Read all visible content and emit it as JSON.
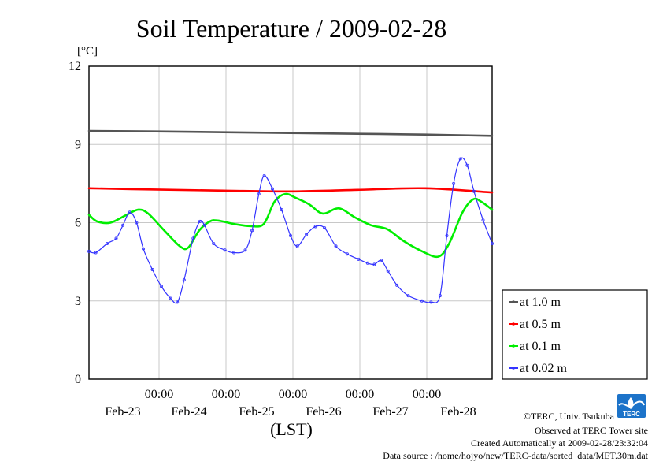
{
  "title": "Soil Temperature / 2009-02-28",
  "unit": "[°C]",
  "xlabel": "(LST)",
  "credits": [
    "©TERC, Univ. Tsukuba",
    "Observed at TERC Tower site",
    "Created Automatically at 2009-02-28/23:32:04",
    "Data source : /home/hojyo/new/TERC-data/sorted_data/MET.30m.dat"
  ],
  "logo_text": "TERC",
  "chart_data": {
    "type": "line",
    "title": "Soil Temperature / 2009-02-28",
    "xlabel": "(LST)",
    "ylabel": "[°C]",
    "ylim": [
      0,
      12
    ],
    "xlim_days": [
      0,
      6
    ],
    "xticks": [
      {
        "pos": 1,
        "time": "00:00",
        "date": "Feb-23"
      },
      {
        "pos": 2,
        "time": "00:00",
        "date": "Feb-24"
      },
      {
        "pos": 3,
        "time": "00:00",
        "date": "Feb-25"
      },
      {
        "pos": 4,
        "time": "00:00",
        "date": "Feb-26"
      },
      {
        "pos": 5,
        "time": "00:00",
        "date": "Feb-27"
      },
      {
        "pos": 6,
        "time": "00:00",
        "date": "Feb-28"
      }
    ],
    "yticks": [
      0,
      3,
      6,
      9,
      12
    ],
    "grid": true,
    "legend_position": "right",
    "series": [
      {
        "name": "at 1.0 m",
        "color": "#555555",
        "points": [
          [
            0.0,
            9.52
          ],
          [
            1.0,
            9.5
          ],
          [
            2.0,
            9.47
          ],
          [
            3.0,
            9.44
          ],
          [
            4.0,
            9.41
          ],
          [
            5.0,
            9.38
          ],
          [
            6.0,
            9.33
          ]
        ]
      },
      {
        "name": "at 0.5 m",
        "color": "#ff0000",
        "points": [
          [
            0.0,
            7.32
          ],
          [
            1.0,
            7.27
          ],
          [
            2.0,
            7.23
          ],
          [
            3.0,
            7.2
          ],
          [
            4.0,
            7.26
          ],
          [
            5.0,
            7.32
          ],
          [
            6.0,
            7.16
          ]
        ]
      },
      {
        "name": "at 0.1 m",
        "color": "#00ee00",
        "points": [
          [
            0.0,
            6.3
          ],
          [
            0.15,
            6.05
          ],
          [
            0.4,
            6.0
          ],
          [
            0.7,
            6.3
          ],
          [
            0.92,
            6.5
          ],
          [
            1.1,
            6.35
          ],
          [
            1.4,
            5.7
          ],
          [
            1.7,
            5.08
          ],
          [
            1.85,
            5.05
          ],
          [
            2.05,
            5.7
          ],
          [
            2.25,
            6.05
          ],
          [
            2.4,
            6.08
          ],
          [
            2.7,
            5.95
          ],
          [
            3.0,
            5.87
          ],
          [
            3.25,
            5.95
          ],
          [
            3.45,
            6.8
          ],
          [
            3.65,
            7.1
          ],
          [
            3.85,
            6.95
          ],
          [
            4.1,
            6.7
          ],
          [
            4.35,
            6.35
          ],
          [
            4.65,
            6.55
          ],
          [
            4.95,
            6.2
          ],
          [
            5.25,
            5.9
          ],
          [
            5.55,
            5.75
          ],
          [
            5.85,
            5.3
          ],
          [
            6.2,
            4.9
          ],
          [
            6.5,
            4.7
          ],
          [
            6.7,
            5.2
          ],
          [
            6.95,
            6.4
          ],
          [
            7.15,
            6.9
          ],
          [
            7.3,
            6.8
          ],
          [
            7.5,
            6.5
          ]
        ]
      },
      {
        "name": "at 0.02 m",
        "color": "#3333ff",
        "points": [
          [
            0.0,
            4.9
          ],
          [
            0.15,
            4.85
          ],
          [
            0.4,
            5.2
          ],
          [
            0.6,
            5.4
          ],
          [
            0.75,
            5.9
          ],
          [
            0.9,
            6.4
          ],
          [
            1.05,
            6.0
          ],
          [
            1.2,
            5.0
          ],
          [
            1.4,
            4.2
          ],
          [
            1.6,
            3.55
          ],
          [
            1.8,
            3.1
          ],
          [
            1.95,
            2.95
          ],
          [
            2.1,
            3.8
          ],
          [
            2.3,
            5.4
          ],
          [
            2.45,
            6.05
          ],
          [
            2.55,
            5.9
          ],
          [
            2.75,
            5.2
          ],
          [
            3.0,
            4.95
          ],
          [
            3.2,
            4.85
          ],
          [
            3.45,
            4.95
          ],
          [
            3.6,
            5.7
          ],
          [
            3.75,
            7.1
          ],
          [
            3.87,
            7.8
          ],
          [
            4.05,
            7.3
          ],
          [
            4.25,
            6.5
          ],
          [
            4.45,
            5.5
          ],
          [
            4.6,
            5.1
          ],
          [
            4.8,
            5.55
          ],
          [
            5.0,
            5.85
          ],
          [
            5.2,
            5.8
          ],
          [
            5.45,
            5.1
          ],
          [
            5.7,
            4.8
          ],
          [
            5.95,
            4.6
          ],
          [
            6.15,
            4.45
          ],
          [
            6.3,
            4.4
          ],
          [
            6.45,
            4.55
          ],
          [
            6.6,
            4.15
          ],
          [
            6.8,
            3.6
          ],
          [
            7.05,
            3.2
          ],
          [
            7.35,
            3.0
          ],
          [
            7.55,
            2.95
          ],
          [
            7.75,
            3.2
          ],
          [
            7.9,
            5.5
          ],
          [
            8.05,
            7.5
          ],
          [
            8.2,
            8.45
          ],
          [
            8.35,
            8.2
          ],
          [
            8.5,
            7.2
          ],
          [
            8.7,
            6.1
          ],
          [
            8.9,
            5.2
          ]
        ]
      }
    ]
  }
}
